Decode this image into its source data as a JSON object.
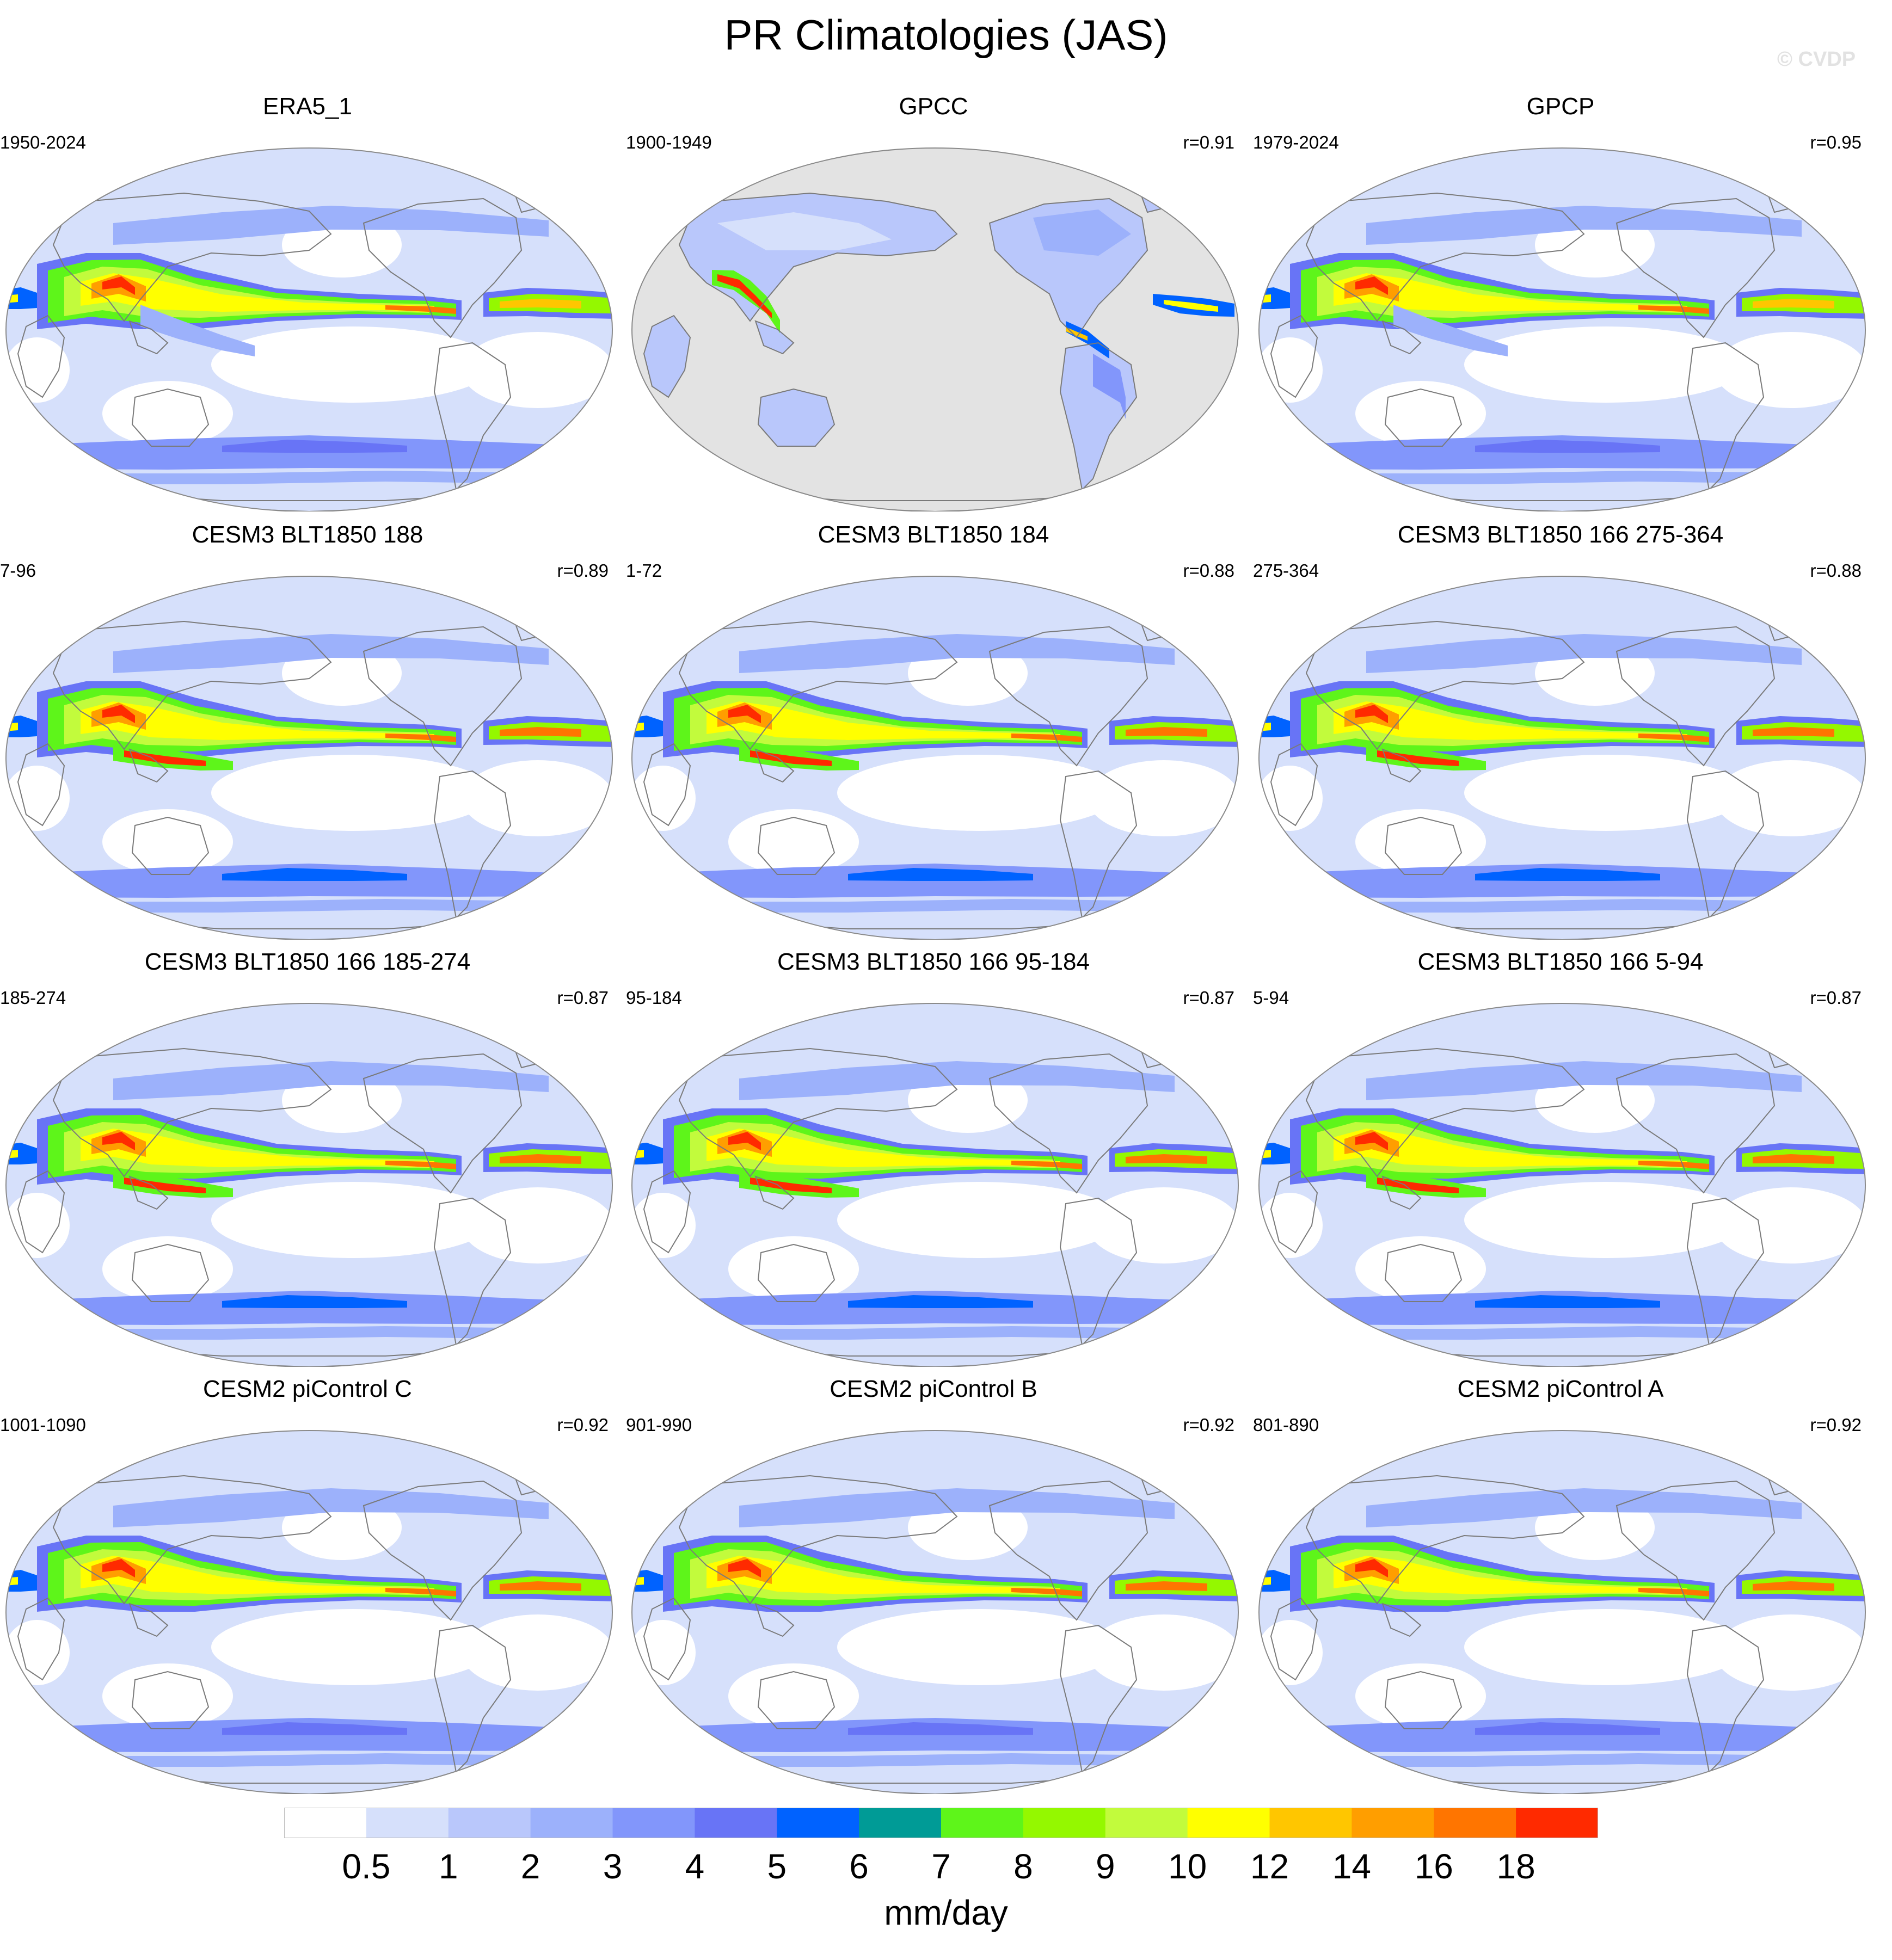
{
  "title": "PR Climatologies (JAS)",
  "watermark": "© CVDP",
  "panels": [
    {
      "title": "ERA5_1",
      "period": "1950-2024",
      "corr": "",
      "land_masked": false,
      "variant": "obs"
    },
    {
      "title": "GPCC",
      "period": "1900-1949",
      "corr": "r=0.91",
      "land_masked": true,
      "variant": "obs"
    },
    {
      "title": "GPCP",
      "period": "1979-2024",
      "corr": "r=0.95",
      "land_masked": false,
      "variant": "gpcp"
    },
    {
      "title": "CESM3 BLT1850 188",
      "period": "7-96",
      "corr": "r=0.89",
      "land_masked": false,
      "variant": "cesm3"
    },
    {
      "title": "CESM3 BLT1850 184",
      "period": "1-72",
      "corr": "r=0.88",
      "land_masked": false,
      "variant": "cesm3"
    },
    {
      "title": "CESM3 BLT1850 166 275-364",
      "period": "275-364",
      "corr": "r=0.88",
      "land_masked": false,
      "variant": "cesm3"
    },
    {
      "title": "CESM3 BLT1850 166 185-274",
      "period": "185-274",
      "corr": "r=0.87",
      "land_masked": false,
      "variant": "cesm3"
    },
    {
      "title": "CESM3 BLT1850 166 95-184",
      "period": "95-184",
      "corr": "r=0.87",
      "land_masked": false,
      "variant": "cesm3"
    },
    {
      "title": "CESM3 BLT1850 166 5-94",
      "period": "5-94",
      "corr": "r=0.87",
      "land_masked": false,
      "variant": "cesm3"
    },
    {
      "title": "CESM2 piControl C",
      "period": "1001-1090",
      "corr": "r=0.92",
      "land_masked": false,
      "variant": "cesm2"
    },
    {
      "title": "CESM2 piControl B",
      "period": "901-990",
      "corr": "r=0.92",
      "land_masked": false,
      "variant": "cesm2"
    },
    {
      "title": "CESM2 piControl A",
      "period": "801-890",
      "corr": "r=0.92",
      "land_masked": false,
      "variant": "cesm2"
    }
  ],
  "colorbar": {
    "units": "mm/day",
    "labels": [
      "0.5",
      "1",
      "2",
      "3",
      "4",
      "5",
      "6",
      "7",
      "8",
      "9",
      "10",
      "12",
      "14",
      "16",
      "18"
    ],
    "colors": [
      "#ffffff",
      "#d6e0fb",
      "#b9c7fb",
      "#9cb1fb",
      "#8296fb",
      "#6874f6",
      "#0062ff",
      "#009b96",
      "#5ef51a",
      "#94f800",
      "#c2fb3c",
      "#ffff00",
      "#ffc600",
      "#ff9e00",
      "#ff7500",
      "#ff2a00"
    ],
    "missing_color": "#e3e3e3"
  }
}
